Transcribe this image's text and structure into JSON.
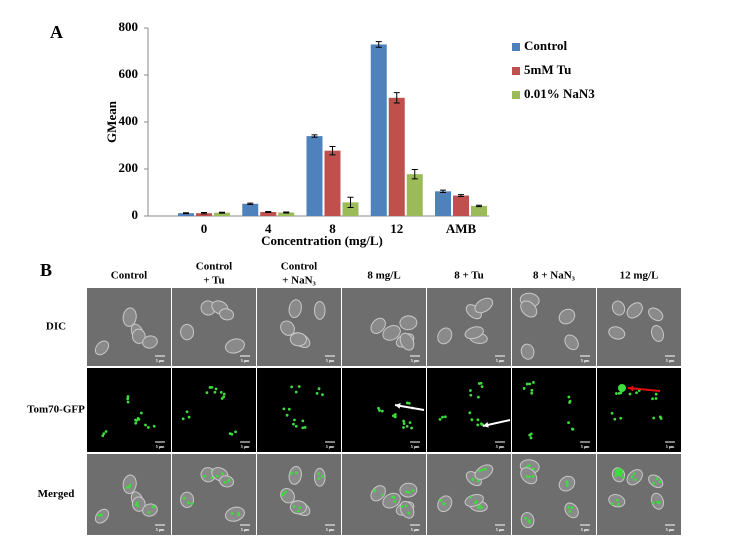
{
  "chart_data": {
    "type": "bar",
    "panel_label": "A",
    "categories": [
      "0",
      "4",
      "8",
      "12",
      "AMB"
    ],
    "series": [
      {
        "name": "Control",
        "color": "#4f81bd",
        "values": [
          12,
          52,
          340,
          730,
          105
        ],
        "errors": [
          2,
          3,
          5,
          12,
          5
        ]
      },
      {
        "name": "5mM Tu",
        "color": "#c0504d",
        "values": [
          12,
          17,
          278,
          503,
          87
        ],
        "errors": [
          3,
          2,
          18,
          22,
          4
        ]
      },
      {
        "name": "0.01% NaN3",
        "color": "#9bbb59",
        "values": [
          14,
          15,
          58,
          178,
          43
        ],
        "errors": [
          2,
          2,
          22,
          20,
          3
        ]
      }
    ],
    "ylim": [
      0,
      800
    ],
    "yticks": [
      0,
      200,
      400,
      600,
      800
    ],
    "y_label": "GMean",
    "x_label": "Concentration (mg/L)",
    "legend": "right"
  },
  "panel_b": {
    "panel_label": "B",
    "columns": [
      [
        "Control"
      ],
      [
        "Control",
        "+ Tu"
      ],
      [
        "Control",
        "+ NaN₃"
      ],
      [
        "8 mg/L"
      ],
      [
        "8 + Tu"
      ],
      [
        "8 + NaN₃"
      ],
      [
        "12 mg/L"
      ]
    ],
    "rows": [
      "DIC",
      "Tom70-GFP",
      "Merged"
    ],
    "scale_bar": "5 μm"
  }
}
